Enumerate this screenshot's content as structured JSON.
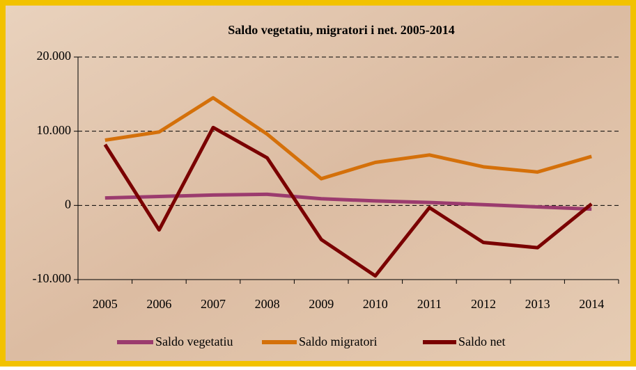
{
  "chart_data": {
    "type": "line",
    "title": "Saldo vegetatiu, migratori i net. 2005-2014",
    "categories": [
      "2005",
      "2006",
      "2007",
      "2008",
      "2009",
      "2010",
      "2011",
      "2012",
      "2013",
      "2014"
    ],
    "series": [
      {
        "name": "Saldo vegetatiu",
        "color": "#9b3b6e",
        "values": [
          1000,
          1200,
          1400,
          1500,
          900,
          600,
          400,
          100,
          -200,
          -500
        ]
      },
      {
        "name": "Saldo migratori",
        "color": "#d4700a",
        "values": [
          8800,
          9900,
          14500,
          9600,
          3600,
          5800,
          6800,
          5200,
          4500,
          6600
        ]
      },
      {
        "name": "Saldo net",
        "color": "#7a0000",
        "values": [
          8200,
          -3300,
          10500,
          6400,
          -4600,
          -9500,
          -300,
          -5000,
          -5700,
          200
        ]
      }
    ],
    "ylim": [
      -10000,
      20000
    ],
    "yticks": [
      {
        "value": -10000,
        "label": "-10.000"
      },
      0,
      {
        "value": 10000,
        "label": "10.000"
      },
      {
        "value": 20000,
        "label": "20.000"
      }
    ],
    "grid": true,
    "legend": "bottom"
  }
}
